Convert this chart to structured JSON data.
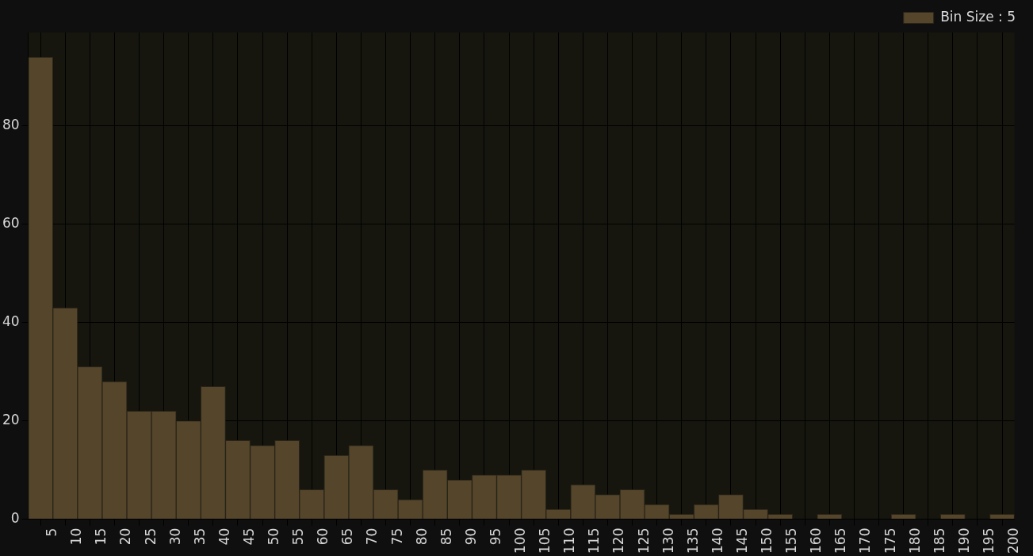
{
  "chart_data": {
    "type": "histogram",
    "bins": [
      0,
      5,
      10,
      15,
      20,
      25,
      30,
      35,
      40,
      45,
      50,
      55,
      60,
      65,
      70,
      75,
      80,
      85,
      90,
      95,
      100,
      105,
      110,
      115,
      120,
      125,
      130,
      135,
      140,
      145,
      150,
      155,
      160,
      165,
      170,
      175,
      180,
      185,
      190,
      195,
      200
    ],
    "series": [
      {
        "name": "Bin Size : 5",
        "color": "#54452b",
        "values": [
          94,
          43,
          31,
          28,
          22,
          22,
          20,
          27,
          16,
          15,
          16,
          6,
          13,
          15,
          6,
          4,
          10,
          8,
          9,
          9,
          10,
          2,
          7,
          5,
          6,
          3,
          1,
          3,
          5,
          2,
          1,
          0,
          1,
          0,
          0,
          1,
          0,
          1,
          0,
          1
        ]
      }
    ],
    "xlim": [
      0,
      200
    ],
    "xticks": [
      5,
      10,
      15,
      20,
      25,
      30,
      35,
      40,
      45,
      50,
      55,
      60,
      65,
      70,
      75,
      80,
      85,
      90,
      95,
      100,
      105,
      110,
      115,
      120,
      125,
      130,
      135,
      140,
      145,
      150,
      155,
      160,
      165,
      170,
      175,
      180,
      185,
      190,
      195,
      200
    ],
    "ylim": [
      0,
      99
    ],
    "yticks": [
      0,
      20,
      40,
      60,
      80
    ],
    "grid": true,
    "legend": "top right"
  }
}
